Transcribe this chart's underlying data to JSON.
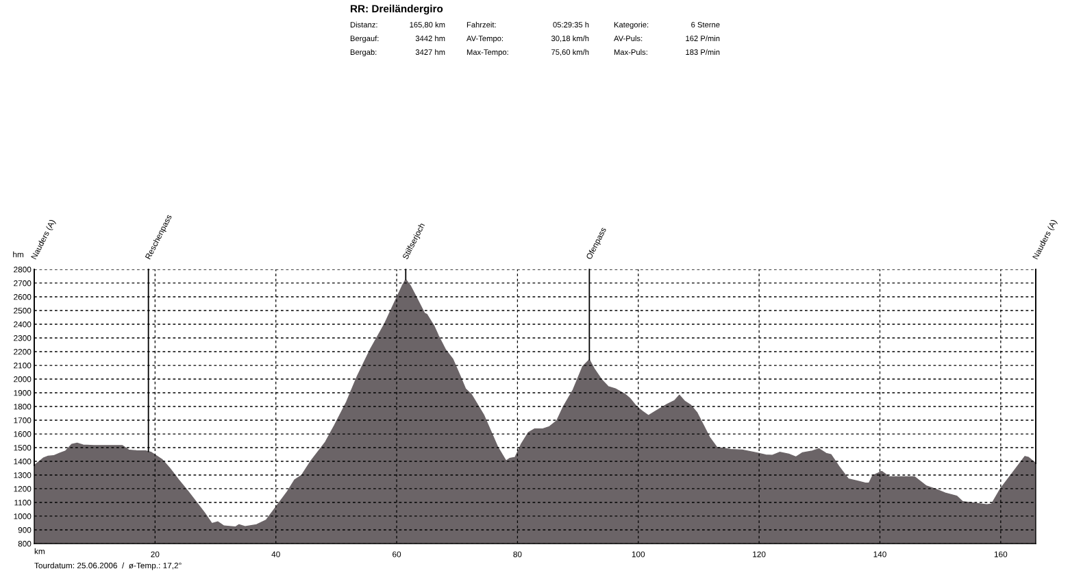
{
  "chart_data": {
    "type": "area",
    "title": "RR: Dreiländergiro",
    "xlabel": "km",
    "ylabel": "hm",
    "x": [
      0,
      0.7,
      1.5,
      2.3,
      3.2,
      4.2,
      5.2,
      6.2,
      7.1,
      8.1,
      9.9,
      11.8,
      14.6,
      15.7,
      16.9,
      18.5,
      19.3,
      20.0,
      21.2,
      22.4,
      23.9,
      25.5,
      26.7,
      28.2,
      29.4,
      30.4,
      31.4,
      33.3,
      33.9,
      34.9,
      36.8,
      38.4,
      40.0,
      41.9,
      43.1,
      44.3,
      45.8,
      48.2,
      49.7,
      51.7,
      53.5,
      55.6,
      58.0,
      60.0,
      60.9,
      61.5,
      62.3,
      63.2,
      64.6,
      65.0,
      66.2,
      66.9,
      68.1,
      69.3,
      70.5,
      71.4,
      72.4,
      74.4,
      75.5,
      76.7,
      78.1,
      78.7,
      79.6,
      80.6,
      81.8,
      82.8,
      84.1,
      85.3,
      86.5,
      87.6,
      89.2,
      90.8,
      91.9,
      92.7,
      93.9,
      95.0,
      96.2,
      97.8,
      98.6,
      99.7,
      100.7,
      101.7,
      102.8,
      104.8,
      106.0,
      106.8,
      107.7,
      108.7,
      109.7,
      110.7,
      111.8,
      113.0,
      115.3,
      117.2,
      119.5,
      121.1,
      122.2,
      123.4,
      124.9,
      126.1,
      127.2,
      128.8,
      129.9,
      131.1,
      131.9,
      133.2,
      134.8,
      136.5,
      137.6,
      138.2,
      138.8,
      140.3,
      141.5,
      145.7,
      147.7,
      149.2,
      150.8,
      152.7,
      153.7,
      155.4,
      157.7,
      158.5,
      160.0,
      161.9,
      164.0,
      164.6,
      165.8
    ],
    "series": [
      {
        "color": "#6b6467",
        "values": [
          1370,
          1395,
          1424,
          1438,
          1441,
          1459,
          1476,
          1524,
          1533,
          1519,
          1515,
          1515,
          1515,
          1481,
          1478,
          1476,
          1467,
          1447,
          1412,
          1352,
          1265,
          1179,
          1110,
          1024,
          947,
          959,
          929,
          921,
          938,
          924,
          938,
          972,
          1067,
          1179,
          1265,
          1300,
          1403,
          1541,
          1662,
          1834,
          2024,
          2214,
          2403,
          2593,
          2679,
          2727,
          2679,
          2602,
          2481,
          2472,
          2386,
          2317,
          2214,
          2145,
          2024,
          1929,
          1886,
          1740,
          1628,
          1507,
          1403,
          1421,
          1429,
          1524,
          1610,
          1636,
          1636,
          1653,
          1696,
          1800,
          1921,
          2093,
          2141,
          2076,
          1998,
          1946,
          1929,
          1890,
          1860,
          1800,
          1765,
          1734,
          1765,
          1817,
          1843,
          1883,
          1838,
          1809,
          1757,
          1671,
          1576,
          1503,
          1487,
          1483,
          1463,
          1446,
          1444,
          1466,
          1453,
          1432,
          1463,
          1475,
          1492,
          1458,
          1449,
          1364,
          1271,
          1254,
          1242,
          1242,
          1296,
          1327,
          1288,
          1288,
          1220,
          1198,
          1169,
          1147,
          1106,
          1097,
          1084,
          1089,
          1203,
          1313,
          1436,
          1429,
          1385
        ]
      }
    ],
    "xlim": [
      0,
      165.8
    ],
    "ylim": [
      800,
      2800
    ],
    "xticks": [
      20,
      40,
      60,
      80,
      100,
      120,
      140,
      160
    ],
    "yticks": [
      800,
      900,
      1000,
      1100,
      1200,
      1300,
      1400,
      1500,
      1600,
      1700,
      1800,
      1900,
      2000,
      2100,
      2200,
      2300,
      2400,
      2500,
      2600,
      2700,
      2800
    ],
    "grid": true,
    "ref_lines": [
      {
        "axis": "x",
        "value": 0,
        "label": "Nauders (A)",
        "color": "#000000"
      },
      {
        "axis": "x",
        "value": 18.9,
        "label": "Reschenpass",
        "color": "#000000"
      },
      {
        "axis": "x",
        "value": 61.5,
        "label": "Stilfserjoch",
        "color": "#000000"
      },
      {
        "axis": "x",
        "value": 91.9,
        "label": "Ofenpass",
        "color": "#000000"
      },
      {
        "axis": "x",
        "value": 165.8,
        "label": "Nauders (A)",
        "color": "#000000"
      }
    ],
    "annotations": [
      "Distanz:",
      "165,80 km",
      "Fahrzeit:",
      "05:29:35 h",
      "Kategorie:",
      "6 Sterne",
      "Bergauf:",
      "3442 hm",
      "AV-Tempo:",
      "30,18 km/h",
      "AV-Puls:",
      "162 P/min",
      "Bergab:",
      "3427 hm",
      "Max-Tempo:",
      "75,60 km/h",
      "Max-Puls:",
      "183 P/min",
      "Tourdatum: 25.06.2006  /  ø-Temp.: 17,2°"
    ]
  }
}
